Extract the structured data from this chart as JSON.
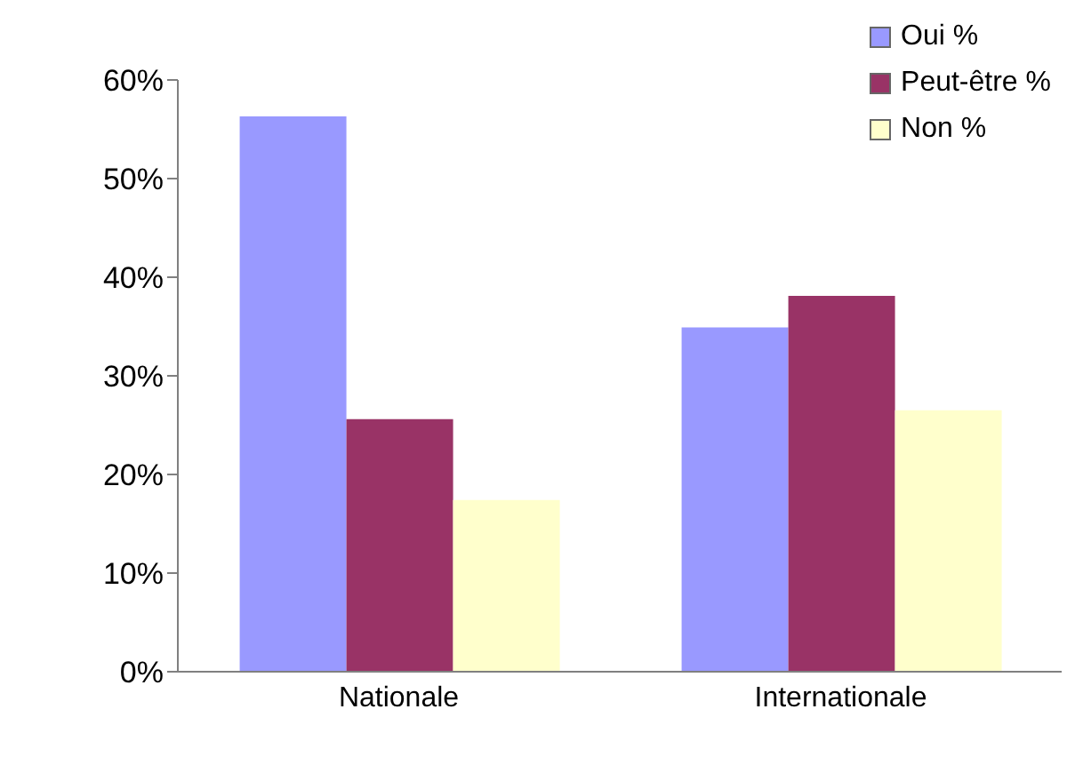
{
  "chart_data": {
    "type": "bar",
    "categories": [
      "Nationale",
      "Internationale"
    ],
    "series": [
      {
        "name": "Oui %",
        "color": "#9999ff",
        "values": [
          56.3,
          34.9
        ]
      },
      {
        "name": "Peut-être %",
        "color": "#993366",
        "values": [
          25.6,
          38.1
        ]
      },
      {
        "name": "Non %",
        "color": "#ffffcc",
        "values": [
          17.4,
          26.5
        ]
      }
    ],
    "ylim": [
      0,
      60
    ],
    "yticks": [
      {
        "value": 0,
        "label": "0%"
      },
      {
        "value": 10,
        "label": "10%"
      },
      {
        "value": 20,
        "label": "20%"
      },
      {
        "value": 30,
        "label": "30%"
      },
      {
        "value": 40,
        "label": "40%"
      },
      {
        "value": 50,
        "label": "50%"
      },
      {
        "value": 60,
        "label": "60%"
      }
    ],
    "grid": false,
    "legend": "top right"
  }
}
